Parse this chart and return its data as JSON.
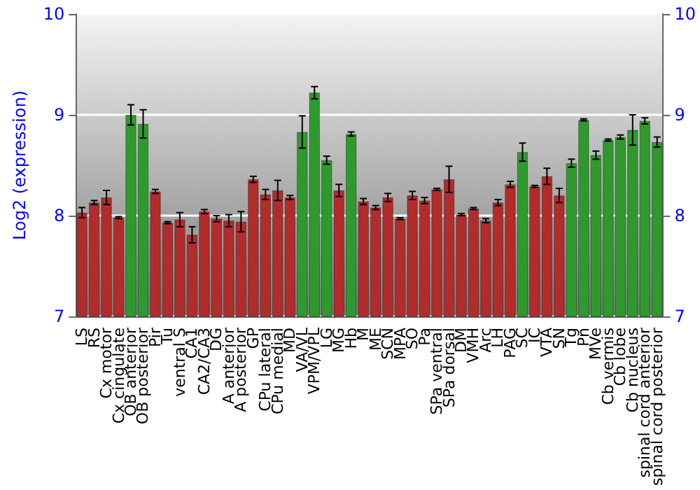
{
  "chart_data": {
    "type": "bar",
    "ylabel": "Log2 (expression)",
    "categories": [
      "LS",
      "RS",
      "Cx motor",
      "Cx cingulate",
      "OB anterior",
      "OB posterior",
      "Pir",
      "Tu",
      "ventral S",
      "CA1",
      "CA2/CA3",
      "DG",
      "A anterior",
      "A posterior",
      "GP",
      "CPu lateral",
      "CPu medial",
      "MD",
      "VA/VL",
      "VPM/VPL",
      "LG",
      "MG",
      "Hb",
      "M",
      "ME",
      "SCN",
      "MPA",
      "SO",
      "Pa",
      "SPa ventral",
      "SPa dorsal",
      "DM",
      "VMH",
      "Arc",
      "LH",
      "PAG",
      "SC",
      "IC",
      "VTA",
      "SN",
      "Tg",
      "Pn",
      "MVe",
      "Cb vermis",
      "Cb lobe",
      "Cb nucleus",
      "spinal cord anterior",
      "spinal cord posterior"
    ],
    "values": [
      8.03,
      8.13,
      8.18,
      7.98,
      9.0,
      8.91,
      8.24,
      7.93,
      7.96,
      7.81,
      8.04,
      7.97,
      7.95,
      7.94,
      8.36,
      8.21,
      8.25,
      8.18,
      8.83,
      9.22,
      8.55,
      8.25,
      8.81,
      8.14,
      8.08,
      8.18,
      7.97,
      8.2,
      8.15,
      8.26,
      8.36,
      8.01,
      8.07,
      7.95,
      8.13,
      8.31,
      8.63,
      8.29,
      8.39,
      8.2,
      8.52,
      8.95,
      8.6,
      8.75,
      8.78,
      8.85,
      8.94,
      8.73
    ],
    "errors": [
      0.05,
      0.02,
      0.07,
      0.01,
      0.1,
      0.14,
      0.02,
      0.01,
      0.07,
      0.08,
      0.02,
      0.03,
      0.06,
      0.1,
      0.03,
      0.05,
      0.1,
      0.02,
      0.16,
      0.06,
      0.04,
      0.06,
      0.02,
      0.03,
      0.02,
      0.04,
      0.01,
      0.04,
      0.03,
      0.01,
      0.13,
      0.01,
      0.01,
      0.02,
      0.03,
      0.03,
      0.09,
      0.01,
      0.08,
      0.07,
      0.04,
      0.01,
      0.04,
      0.01,
      0.02,
      0.15,
      0.03,
      0.05
    ],
    "colors": [
      "#b22c2c",
      "#b22c2c",
      "#b22c2c",
      "#b22c2c",
      "#2e9a2e",
      "#2e9a2e",
      "#b22c2c",
      "#b22c2c",
      "#b22c2c",
      "#b22c2c",
      "#b22c2c",
      "#b22c2c",
      "#b22c2c",
      "#b22c2c",
      "#b22c2c",
      "#b22c2c",
      "#b22c2c",
      "#b22c2c",
      "#2e9a2e",
      "#2e9a2e",
      "#2e9a2e",
      "#b22c2c",
      "#2e9a2e",
      "#b22c2c",
      "#b22c2c",
      "#b22c2c",
      "#b22c2c",
      "#b22c2c",
      "#b22c2c",
      "#b22c2c",
      "#b22c2c",
      "#b22c2c",
      "#b22c2c",
      "#b22c2c",
      "#b22c2c",
      "#b22c2c",
      "#2e9a2e",
      "#b22c2c",
      "#b22c2c",
      "#b22c2c",
      "#2e9a2e",
      "#2e9a2e",
      "#2e9a2e",
      "#2e9a2e",
      "#2e9a2e",
      "#2e9a2e",
      "#2e9a2e",
      "#2e9a2e"
    ],
    "ylim": [
      7,
      10
    ],
    "yticks": [
      7,
      8,
      9,
      10
    ],
    "y2lim": [
      7,
      10
    ],
    "y2ticks": [
      7,
      8,
      9,
      10
    ],
    "grid": "y"
  }
}
